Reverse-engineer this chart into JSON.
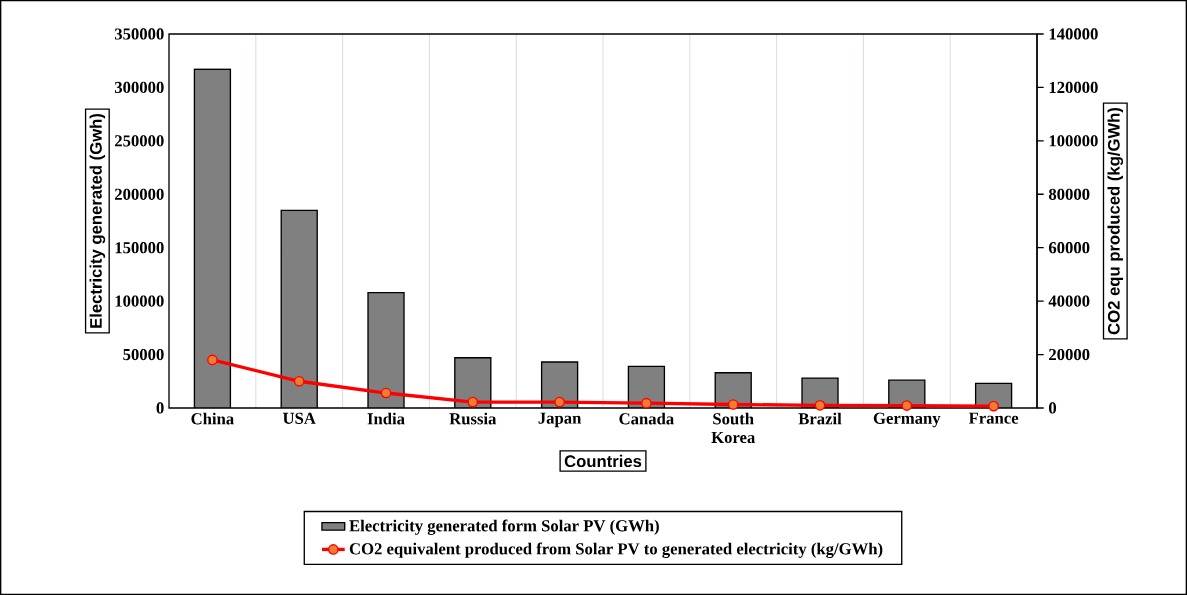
{
  "chart_data": {
    "type": "bar",
    "xlabel": "Countries",
    "ylabel": "Electricity generated (Gwh)",
    "y2label": "CO2 equ produced (kg/GWh)",
    "categories": [
      "China",
      "USA",
      "India",
      "Russia",
      "Japan",
      "Canada",
      "South Korea",
      "Brazil",
      "Germany",
      "France"
    ],
    "series": [
      {
        "name": "Electricity generated form Solar PV (GWh)",
        "color": "#808080",
        "values": [
          317000,
          185000,
          108000,
          47000,
          43000,
          39000,
          33000,
          28000,
          26000,
          23000
        ]
      },
      {
        "name": "CO2 equivalent produced from Solar PV to generated electricity (kg/GWh)",
        "type": "line",
        "axis": "y2",
        "color": "#ff0000",
        "values": [
          18000,
          10000,
          5600,
          2200,
          2200,
          1800,
          1300,
          1000,
          900,
          700
        ]
      }
    ],
    "ylim": [
      0,
      350000
    ],
    "yticks": [
      0,
      50000,
      100000,
      150000,
      200000,
      250000,
      300000,
      350000
    ],
    "y2lim": [
      0,
      140000
    ],
    "y2ticks": [
      0,
      20000,
      40000,
      60000,
      80000,
      100000,
      120000,
      140000
    ],
    "grid": "x",
    "legend": "bottom",
    "marker": "circle",
    "line_style": "solid"
  }
}
